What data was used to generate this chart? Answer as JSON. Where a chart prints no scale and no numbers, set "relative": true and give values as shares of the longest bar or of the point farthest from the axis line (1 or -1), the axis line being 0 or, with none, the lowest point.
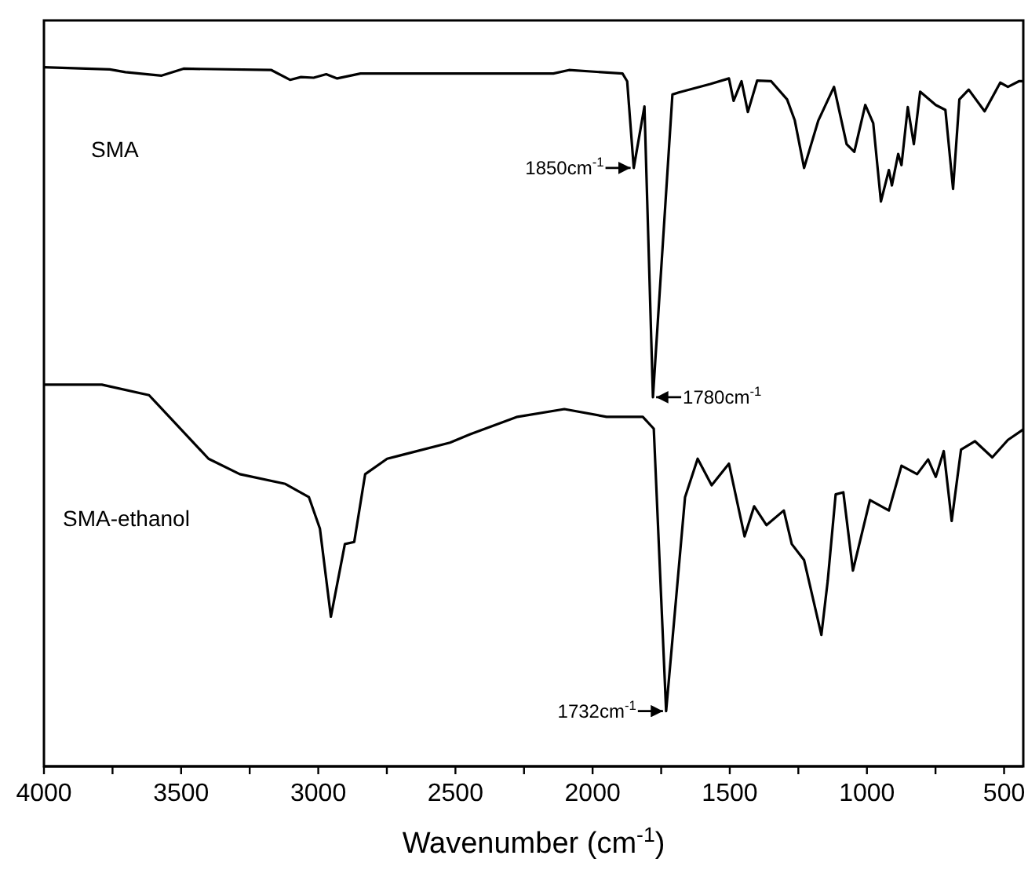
{
  "chart_data": {
    "type": "line",
    "relative": true,
    "xlabel": "Wavenumber (cm$^{-1}$)",
    "xlim": [
      4000,
      430
    ],
    "xticks": [
      4000,
      {
        "value": 3750,
        "label": null
      },
      3500,
      {
        "value": 3250,
        "label": null
      },
      3000,
      {
        "value": 2750,
        "label": null
      },
      2500,
      {
        "value": 2250,
        "label": null
      },
      2000,
      {
        "value": 1750,
        "label": null
      },
      1500,
      {
        "value": 1250,
        "label": null
      },
      1000,
      {
        "value": 750,
        "label": null
      },
      500
    ],
    "tick_labels": "x",
    "grid": false,
    "marker": "none",
    "line_style": "solid",
    "series": [
      {
        "name": "SMA",
        "color": "#000000",
        "x": [
          4000,
          3760,
          3703,
          3571,
          3491,
          3171,
          3103,
          3063,
          3017,
          2971,
          2931,
          2846,
          2331,
          2143,
          2086,
          1891,
          1874,
          1850,
          1811,
          1780,
          1709,
          1686,
          1571,
          1503,
          1486,
          1457,
          1434,
          1400,
          1349,
          1291,
          1263,
          1229,
          1177,
          1120,
          1074,
          1046,
          1006,
          977,
          949,
          920,
          909,
          886,
          874,
          851,
          829,
          806,
          749,
          714,
          686,
          663,
          629,
          571,
          514,
          486,
          446,
          430
        ],
        "values": [
          1,
          0.997,
          0.993,
          0.988,
          0.998,
          0.996,
          0.982,
          0.986,
          0.985,
          0.99,
          0.984,
          0.991,
          0.991,
          0.991,
          0.996,
          0.991,
          0.98,
          0.856,
          0.944,
          0.528,
          0.961,
          0.964,
          0.976,
          0.984,
          0.952,
          0.98,
          0.936,
          0.981,
          0.98,
          0.954,
          0.924,
          0.856,
          0.924,
          0.972,
          0.89,
          0.879,
          0.946,
          0.92,
          0.808,
          0.853,
          0.831,
          0.876,
          0.86,
          0.943,
          0.89,
          0.965,
          0.946,
          0.939,
          0.826,
          0.954,
          0.968,
          0.937,
          0.978,
          0.972,
          0.98,
          0.98
        ]
      },
      {
        "name": "SMA-ethanol",
        "color": "#000000",
        "x": [
          4000,
          3789,
          3617,
          3400,
          3286,
          3120,
          3034,
          2994,
          2954,
          2903,
          2869,
          2829,
          2749,
          2520,
          2446,
          2274,
          2103,
          1949,
          1817,
          1777,
          1732,
          1663,
          1617,
          1566,
          1503,
          1446,
          1411,
          1366,
          1303,
          1274,
          1229,
          1166,
          1143,
          1114,
          1086,
          1051,
          989,
          920,
          874,
          817,
          777,
          749,
          720,
          691,
          657,
          606,
          543,
          486,
          430
        ],
        "values": [
          0.546,
          0.546,
          0.531,
          0.44,
          0.418,
          0.404,
          0.385,
          0.34,
          0.214,
          0.318,
          0.321,
          0.418,
          0.44,
          0.463,
          0.475,
          0.5,
          0.511,
          0.5,
          0.5,
          0.483,
          0.079,
          0.385,
          0.44,
          0.402,
          0.433,
          0.329,
          0.372,
          0.345,
          0.366,
          0.318,
          0.295,
          0.188,
          0.265,
          0.389,
          0.392,
          0.28,
          0.381,
          0.366,
          0.43,
          0.418,
          0.439,
          0.414,
          0.451,
          0.351,
          0.453,
          0.465,
          0.442,
          0.467,
          0.482
        ]
      }
    ],
    "annotations": [
      {
        "text": "1850cm$^{-1}$",
        "x": 1850,
        "y": 0.856
      },
      {
        "text": "1780cm$^{-1}$",
        "x": 1780,
        "y": 0.528
      },
      {
        "text": "1732cm$^{-1}$",
        "x": 1732,
        "y": 0.079
      }
    ]
  }
}
